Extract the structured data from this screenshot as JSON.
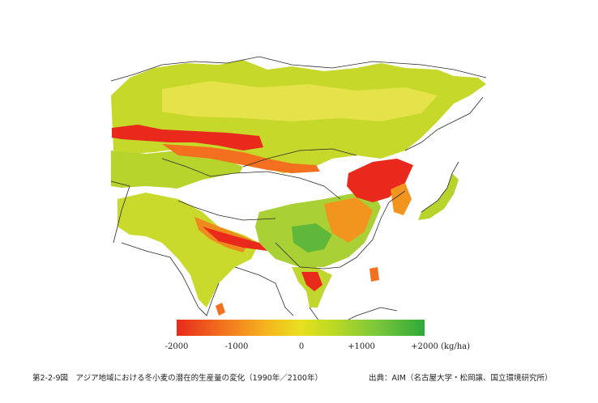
{
  "map": {
    "region": "Asia",
    "colors": {
      "land_outline": "#2a2a2a",
      "low": "#e8291c",
      "mid_low": "#f2701e",
      "mid": "#f5b41e",
      "neutral": "#e9e020",
      "mid_high": "#bfda22",
      "high": "#2fa83a",
      "no_data": "#ffffff"
    }
  },
  "legend": {
    "min": -2000,
    "max": 2000,
    "ticks": [
      "-2000",
      "-1000",
      "0",
      "+1000",
      "+2000"
    ],
    "unit": "(kg/ha)"
  },
  "caption": {
    "figure_title": "第2-2-9図　アジア地域における冬小麦の潜在的生産量の変化（1990年／2100年）",
    "source": "出典：AIM（名古屋大学・松岡譲、国立環境研究所）"
  }
}
